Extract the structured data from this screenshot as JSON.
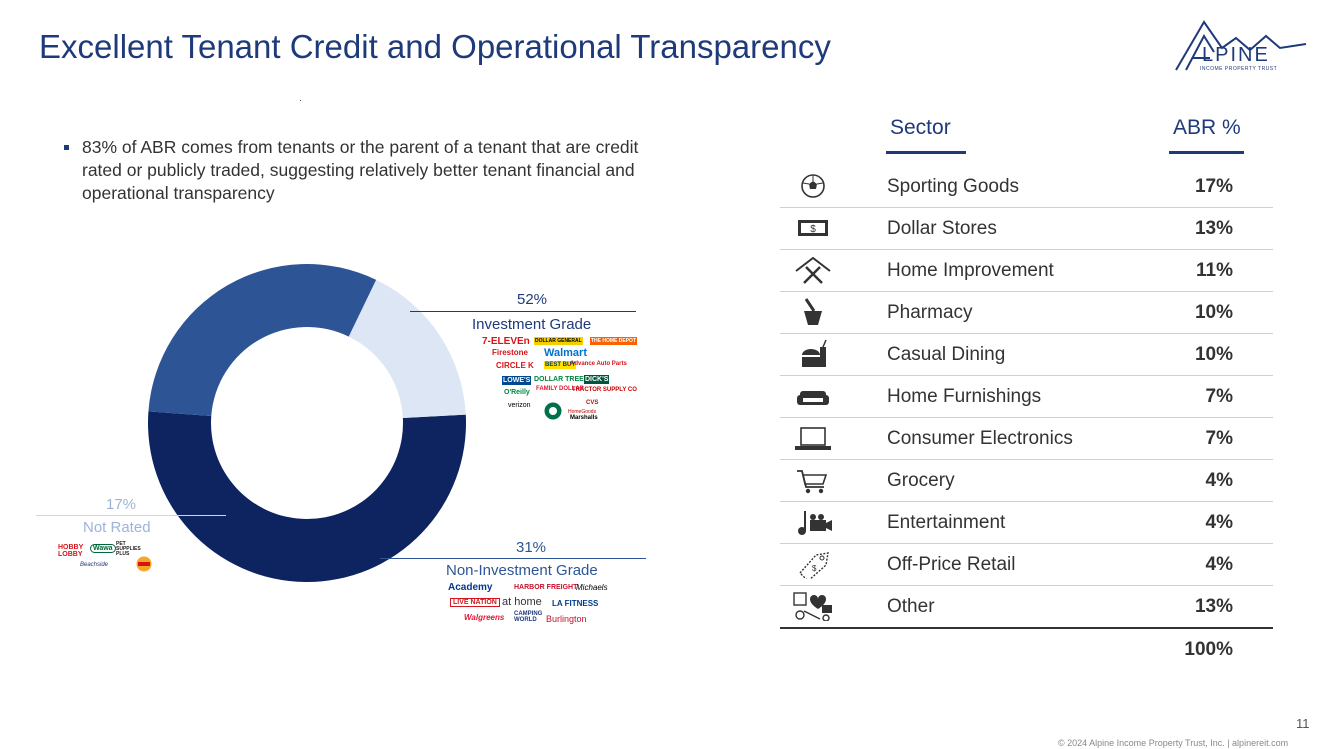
{
  "header": {
    "title": "Excellent Tenant Credit and Operational Transparency",
    "logo_text": "LPINE",
    "logo_subtext": "INCOME PROPERTY TRUST"
  },
  "bullet": "83% of ABR comes from tenants or the parent of a tenant that are credit rated or publicly traded, suggesting relatively better tenant financial and operational transparency",
  "chart_data": {
    "type": "pie",
    "donut": true,
    "categories": [
      "Investment Grade",
      "Non-Investment Grade",
      "Not Rated"
    ],
    "values": [
      52,
      31,
      17
    ],
    "labels": [
      "52%",
      "31%",
      "17%"
    ],
    "colors": [
      "#0e2460",
      "#2d5596",
      "#dde6f4"
    ]
  },
  "tenant_logos": {
    "investment_grade": [
      "7-ELEVEn",
      "DOLLAR GENERAL",
      "Firestone",
      "Walmart",
      "THE HOME DEPOT",
      "CIRCLE K",
      "BEST BUY",
      "Advance Auto Parts",
      "LOWE'S",
      "DOLLAR TREE",
      "DICK'S",
      "O'Reilly",
      "FAMILY DOLLAR",
      "TRACTOR SUPPLY CO",
      "verizon",
      "CVS",
      "HomeGoods",
      "Marshalls"
    ],
    "non_investment_grade": [
      "Academy",
      "HARBOR FREIGHT",
      "Michaels",
      "LIVE NATION",
      "at home",
      "LA FITNESS",
      "Walgreens",
      "CAMPING WORLD",
      "Burlington"
    ],
    "not_rated": [
      "HOBBY LOBBY",
      "Wawa",
      "PET SUPPLIES PLUS",
      "Burger King",
      "Beachside"
    ]
  },
  "table": {
    "headers": {
      "sector": "Sector",
      "abr": "ABR %"
    },
    "rows": [
      {
        "icon": "soccer-ball-icon",
        "sector": "Sporting Goods",
        "abr": "17%"
      },
      {
        "icon": "dollar-bill-icon",
        "sector": "Dollar Stores",
        "abr": "13%"
      },
      {
        "icon": "house-tools-icon",
        "sector": "Home Improvement",
        "abr": "11%"
      },
      {
        "icon": "mortar-pestle-icon",
        "sector": "Pharmacy",
        "abr": "10%"
      },
      {
        "icon": "burger-drink-icon",
        "sector": "Casual Dining",
        "abr": "10%"
      },
      {
        "icon": "sofa-icon",
        "sector": "Home Furnishings",
        "abr": "7%"
      },
      {
        "icon": "laptop-icon",
        "sector": "Consumer Electronics",
        "abr": "7%"
      },
      {
        "icon": "shopping-cart-icon",
        "sector": "Grocery",
        "abr": "4%"
      },
      {
        "icon": "music-camera-icon",
        "sector": "Entertainment",
        "abr": "4%"
      },
      {
        "icon": "price-tag-icon",
        "sector": "Off-Price Retail",
        "abr": "4%"
      },
      {
        "icon": "misc-items-icon",
        "sector": "Other",
        "abr": "13%"
      }
    ],
    "total": "100%"
  },
  "footer": {
    "page_number": "11",
    "copyright": "© 2024 Alpine Income Property Trust, Inc.  |  alpinereit.com"
  },
  "colors": {
    "brand": "#1f3a7a"
  }
}
